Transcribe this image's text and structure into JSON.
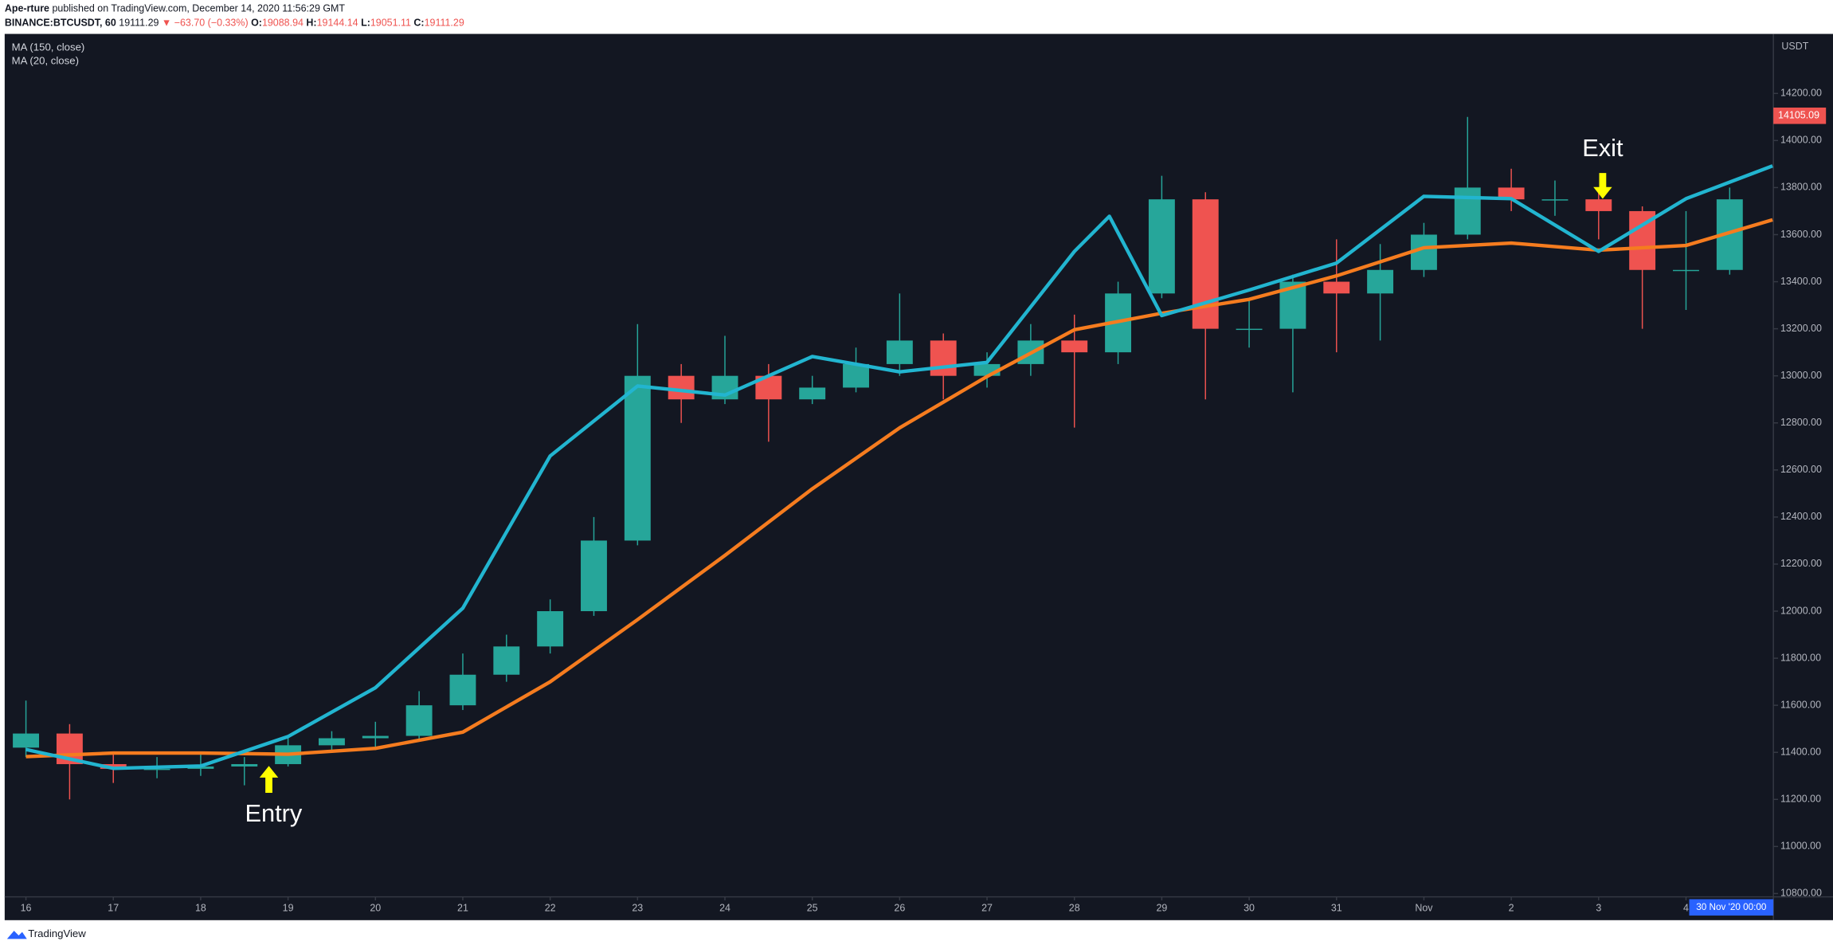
{
  "header": {
    "author": "Ape-rture",
    "published": "published on TradingView.com, December 14, 2020 11:56:29 GMT",
    "symbol": "BINANCE:BTCUSDT, 60",
    "last": 19111.29,
    "direction": "▼",
    "change": "−63.70 (−0.33%)",
    "o_label": "O:",
    "open": 19088.94,
    "h_label": "H:",
    "high": 19144.14,
    "l_label": "L:",
    "low": 19051.11,
    "c_label": "C:",
    "close": 19111.29
  },
  "annotations": {
    "entry": "Entry",
    "exit": "Exit"
  },
  "crosshair_date": "30 Nov '20  00:00",
  "brand": "TradingView",
  "chart_data": {
    "type": "candlestick",
    "currency": "USDT",
    "up_color": "#26a69a",
    "down_color": "#ef5350",
    "x": [
      0,
      0.5,
      1,
      1.5,
      2,
      2.5,
      3,
      3.5,
      4,
      4.5,
      5,
      5.5,
      6,
      6.5,
      7,
      7.5,
      8,
      8.5,
      9,
      9.5,
      10,
      10.5,
      11,
      11.5,
      12,
      12.5,
      13,
      13.5,
      14,
      14.5,
      15,
      15.5,
      16,
      16.5,
      17,
      17.5,
      18,
      18.5,
      19,
      19.5
    ],
    "open": [
      11420,
      11480,
      11350,
      11330,
      11330,
      11340,
      11350,
      11430,
      11460,
      11470,
      11600,
      11730,
      11850,
      12000,
      12300,
      13000,
      12900,
      13000,
      12900,
      12950,
      13050,
      13150,
      13000,
      13050,
      13150,
      13100,
      13350,
      13750,
      13200,
      13200,
      13400,
      13350,
      13450,
      13600,
      13800,
      13750,
      13750,
      13700,
      13450,
      13450
    ],
    "high": [
      11620,
      11520,
      11400,
      11380,
      11390,
      11380,
      11460,
      11490,
      11530,
      11660,
      11820,
      11900,
      12050,
      12400,
      13220,
      13050,
      13170,
      13050,
      13000,
      13120,
      13350,
      13180,
      13100,
      13220,
      13260,
      13400,
      13850,
      13780,
      13320,
      13430,
      13580,
      13560,
      13650,
      14100,
      13880,
      13830,
      13800,
      13720,
      13700,
      13800
    ],
    "low": [
      11380,
      11200,
      11270,
      11290,
      11300,
      11260,
      11340,
      11400,
      11410,
      11450,
      11580,
      11700,
      11820,
      11980,
      12280,
      12800,
      12880,
      12720,
      12880,
      12930,
      13000,
      12900,
      12950,
      13000,
      12780,
      13050,
      13330,
      12900,
      13120,
      12930,
      13100,
      13150,
      13420,
      13580,
      13700,
      13680,
      13580,
      13200,
      13280,
      13430
    ],
    "close": [
      11480,
      11350,
      11330,
      11330,
      11340,
      11350,
      11430,
      11460,
      11470,
      11600,
      11730,
      11850,
      12000,
      12300,
      13000,
      12900,
      13000,
      12900,
      12950,
      13050,
      13150,
      13000,
      13050,
      13150,
      13100,
      13350,
      13750,
      13200,
      13200,
      13400,
      13350,
      13450,
      13600,
      13800,
      13750,
      13750,
      13700,
      13450,
      13450,
      13750
    ],
    "series": [
      {
        "name": "MA (150, close)",
        "color": "#f57c1f",
        "x": [
          0,
          1,
          2,
          3,
          4,
          5,
          6,
          7,
          8,
          9,
          10,
          11,
          12,
          13,
          14,
          15,
          16,
          17,
          18,
          19,
          19.99
        ],
        "values": [
          11382,
          11397,
          11397,
          11392,
          11417,
          11486,
          11700,
          11964,
          12237,
          12520,
          12779,
          12997,
          13196,
          13266,
          13325,
          13425,
          13544,
          13564,
          13534,
          13554,
          13663
        ]
      },
      {
        "name": "MA (20, close)",
        "color": "#22b5d0",
        "x": [
          0,
          1,
          2,
          3,
          4,
          5,
          6,
          7,
          8,
          9,
          10,
          11,
          12,
          12.4,
          13,
          14,
          15,
          16,
          17,
          18,
          19,
          19.99
        ],
        "values": [
          11412,
          11332,
          11342,
          11467,
          11675,
          12013,
          12659,
          12957,
          12918,
          13082,
          13017,
          13057,
          13529,
          13678,
          13256,
          13365,
          13479,
          13763,
          13753,
          13529,
          13753,
          13892
        ]
      }
    ],
    "last_price": 14105.09,
    "xlim": [
      -0.23,
      20.0
    ],
    "xticks": [
      {
        "value": 0,
        "label": "16"
      },
      {
        "value": 1,
        "label": "17"
      },
      {
        "value": 2,
        "label": "18"
      },
      {
        "value": 3,
        "label": "19"
      },
      {
        "value": 4,
        "label": "20"
      },
      {
        "value": 5,
        "label": "21"
      },
      {
        "value": 6,
        "label": "22"
      },
      {
        "value": 7,
        "label": "23"
      },
      {
        "value": 8,
        "label": "24"
      },
      {
        "value": 9,
        "label": "25"
      },
      {
        "value": 10,
        "label": "26"
      },
      {
        "value": 11,
        "label": "27"
      },
      {
        "value": 12,
        "label": "28"
      },
      {
        "value": 13,
        "label": "29"
      },
      {
        "value": 14,
        "label": "30"
      },
      {
        "value": 15,
        "label": "31"
      },
      {
        "value": 16,
        "label": "Nov"
      },
      {
        "value": 17,
        "label": "2"
      },
      {
        "value": 18,
        "label": "3"
      },
      {
        "value": 19,
        "label": "4"
      }
    ],
    "ylim": [
      10786,
      14448
    ],
    "yticks": [
      {
        "value": 10800,
        "label": "10800.00"
      },
      {
        "value": 11000,
        "label": "11000.00"
      },
      {
        "value": 11200,
        "label": "11200.00"
      },
      {
        "value": 11400,
        "label": "11400.00"
      },
      {
        "value": 11600,
        "label": "11600.00"
      },
      {
        "value": 11800,
        "label": "11800.00"
      },
      {
        "value": 12000,
        "label": "12000.00"
      },
      {
        "value": 12200,
        "label": "12200.00"
      },
      {
        "value": 12400,
        "label": "12400.00"
      },
      {
        "value": 12600,
        "label": "12600.00"
      },
      {
        "value": 12800,
        "label": "12800.00"
      },
      {
        "value": 13000,
        "label": "13000.00"
      },
      {
        "value": 13200,
        "label": "13200.00"
      },
      {
        "value": 13400,
        "label": "13400.00"
      },
      {
        "value": 13600,
        "label": "13600.00"
      },
      {
        "value": 13800,
        "label": "13800.00"
      },
      {
        "value": 14000,
        "label": "14000.00"
      },
      {
        "value": 14200,
        "label": "14200.00"
      }
    ],
    "grid": false
  }
}
